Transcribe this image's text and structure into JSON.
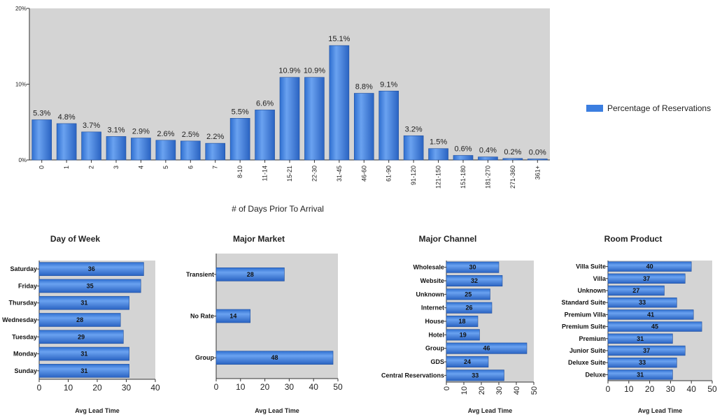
{
  "legend": {
    "label": "Percentage of Reservations",
    "color": "#3b7ee0"
  },
  "chart_data": [
    {
      "type": "bar",
      "categories": [
        "0",
        "1",
        "2",
        "3",
        "4",
        "5",
        "6",
        "7",
        "8-10",
        "11-14",
        "15-21",
        "22-30",
        "31-45",
        "46-60",
        "61-90",
        "91-120",
        "121-150",
        "151-180",
        "181-270",
        "271-360",
        "361+"
      ],
      "series": [
        {
          "name": "Percentage of Reservations",
          "values": [
            5.3,
            4.8,
            3.7,
            3.1,
            2.9,
            2.6,
            2.5,
            2.2,
            5.5,
            6.6,
            10.9,
            10.9,
            15.1,
            8.8,
            9.1,
            3.2,
            1.5,
            0.6,
            0.4,
            0.2,
            0.0
          ]
        }
      ],
      "data_labels": [
        "5.3%",
        "4.8%",
        "3.7%",
        "3.1%",
        "2.9%",
        "2.6%",
        "2.5%",
        "2.2%",
        "5.5%",
        "6.6%",
        "10.9%",
        "10.9%",
        "15.1%",
        "8.8%",
        "9.1%",
        "3.2%",
        "1.5%",
        "0.6%",
        "0.4%",
        "0.2%",
        "0.0%"
      ],
      "xlabel": "# of Days Prior To Arrival",
      "ylabel": "",
      "ylim": [
        0,
        20
      ],
      "yticks": [
        "0%",
        "10%",
        "20%"
      ],
      "legend": "right",
      "grid": false
    },
    {
      "type": "bar",
      "orientation": "horizontal",
      "title": "Day of Week",
      "categories": [
        "Saturday",
        "Friday",
        "Thursday",
        "Wednesday",
        "Tuesday",
        "Monday",
        "Sunday"
      ],
      "values": [
        36,
        35,
        31,
        28,
        29,
        31,
        31
      ],
      "xlabel": "Avg Lead Time",
      "xlim": [
        0,
        40
      ],
      "xticks": [
        "0",
        "10",
        "20",
        "30",
        "40"
      ]
    },
    {
      "type": "bar",
      "orientation": "horizontal",
      "title": "Major Market",
      "categories": [
        "Transient",
        "No Rate",
        "Group"
      ],
      "values": [
        28,
        14,
        48
      ],
      "xlabel": "Avg Lead Time",
      "xlim": [
        0,
        50
      ],
      "xticks": [
        "0",
        "10",
        "20",
        "30",
        "40",
        "50"
      ]
    },
    {
      "type": "bar",
      "orientation": "horizontal",
      "title": "Major Channel",
      "categories": [
        "Wholesale",
        "Website",
        "Unknown",
        "Internet",
        "House",
        "Hotel",
        "Group",
        "GDS",
        "Central Reservations"
      ],
      "values": [
        30,
        32,
        25,
        26,
        18,
        19,
        46,
        24,
        33
      ],
      "xlabel": "Avg Lead Time",
      "xlim": [
        0,
        50
      ],
      "xticks": [
        "0",
        "10",
        "20",
        "30",
        "40",
        "50"
      ]
    },
    {
      "type": "bar",
      "orientation": "horizontal",
      "title": "Room Product",
      "categories": [
        "Villa Suite",
        "Villa",
        "Unknown",
        "Standard Suite",
        "Premium Villa",
        "Premium Suite",
        "Premium",
        "Junior Suite",
        "Deluxe Suite",
        "Deluxe"
      ],
      "values": [
        40,
        37,
        27,
        33,
        41,
        45,
        31,
        37,
        33,
        31
      ],
      "xlabel": "Avg Lead Time",
      "xlim": [
        0,
        50
      ],
      "xticks": [
        "0",
        "10",
        "20",
        "30",
        "40",
        "50"
      ]
    }
  ]
}
